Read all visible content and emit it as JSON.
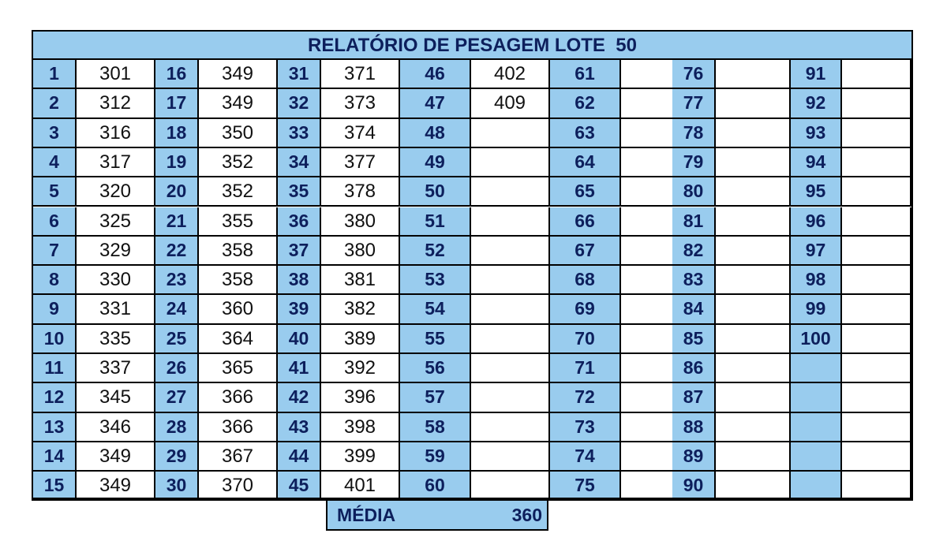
{
  "report": {
    "title": "RELATÓRIO DE PESAGEM LOTE  50",
    "columns": [
      {
        "numbers": [
          "1",
          "2",
          "3",
          "4",
          "5",
          "6",
          "7",
          "8",
          "9",
          "10",
          "11",
          "12",
          "13",
          "14",
          "15"
        ],
        "values": [
          "301",
          "312",
          "316",
          "317",
          "320",
          "325",
          "329",
          "330",
          "331",
          "335",
          "337",
          "345",
          "346",
          "349",
          "349"
        ]
      },
      {
        "numbers": [
          "16",
          "17",
          "18",
          "19",
          "20",
          "21",
          "22",
          "23",
          "24",
          "25",
          "26",
          "27",
          "28",
          "29",
          "30"
        ],
        "values": [
          "349",
          "349",
          "350",
          "352",
          "352",
          "355",
          "358",
          "358",
          "360",
          "364",
          "365",
          "366",
          "366",
          "367",
          "370"
        ]
      },
      {
        "numbers": [
          "31",
          "32",
          "33",
          "34",
          "35",
          "36",
          "37",
          "38",
          "39",
          "40",
          "41",
          "42",
          "43",
          "44",
          "45"
        ],
        "values": [
          "371",
          "373",
          "374",
          "377",
          "378",
          "380",
          "380",
          "381",
          "382",
          "389",
          "392",
          "396",
          "398",
          "399",
          "401"
        ]
      },
      {
        "numbers": [
          "46",
          "47",
          "48",
          "49",
          "50",
          "51",
          "52",
          "53",
          "54",
          "55",
          "56",
          "57",
          "58",
          "59",
          "60"
        ],
        "values": [
          "402",
          "409",
          "",
          "",
          "",
          "",
          "",
          "",
          "",
          "",
          "",
          "",
          "",
          "",
          ""
        ]
      },
      {
        "numbers": [
          "61",
          "62",
          "63",
          "64",
          "65",
          "66",
          "67",
          "68",
          "69",
          "70",
          "71",
          "72",
          "73",
          "74",
          "75"
        ],
        "values": [
          "",
          "",
          "",
          "",
          "",
          "",
          "",
          "",
          "",
          "",
          "",
          "",
          "",
          "",
          ""
        ]
      },
      {
        "numbers": [
          "76",
          "77",
          "78",
          "79",
          "80",
          "81",
          "82",
          "83",
          "84",
          "85",
          "86",
          "87",
          "88",
          "89",
          "90"
        ],
        "values": [
          "",
          "",
          "",
          "",
          "",
          "",
          "",
          "",
          "",
          "",
          "",
          "",
          "",
          "",
          ""
        ]
      },
      {
        "numbers": [
          "91",
          "92",
          "93",
          "94",
          "95",
          "96",
          "97",
          "98",
          "99",
          "100",
          "",
          "",
          "",
          "",
          ""
        ],
        "values": [
          "",
          "",
          "",
          "",
          "",
          "",
          "",
          "",
          "",
          "",
          "",
          "",
          "",
          "",
          ""
        ]
      }
    ],
    "average": {
      "label": "MÉDIA",
      "value": "360"
    }
  }
}
